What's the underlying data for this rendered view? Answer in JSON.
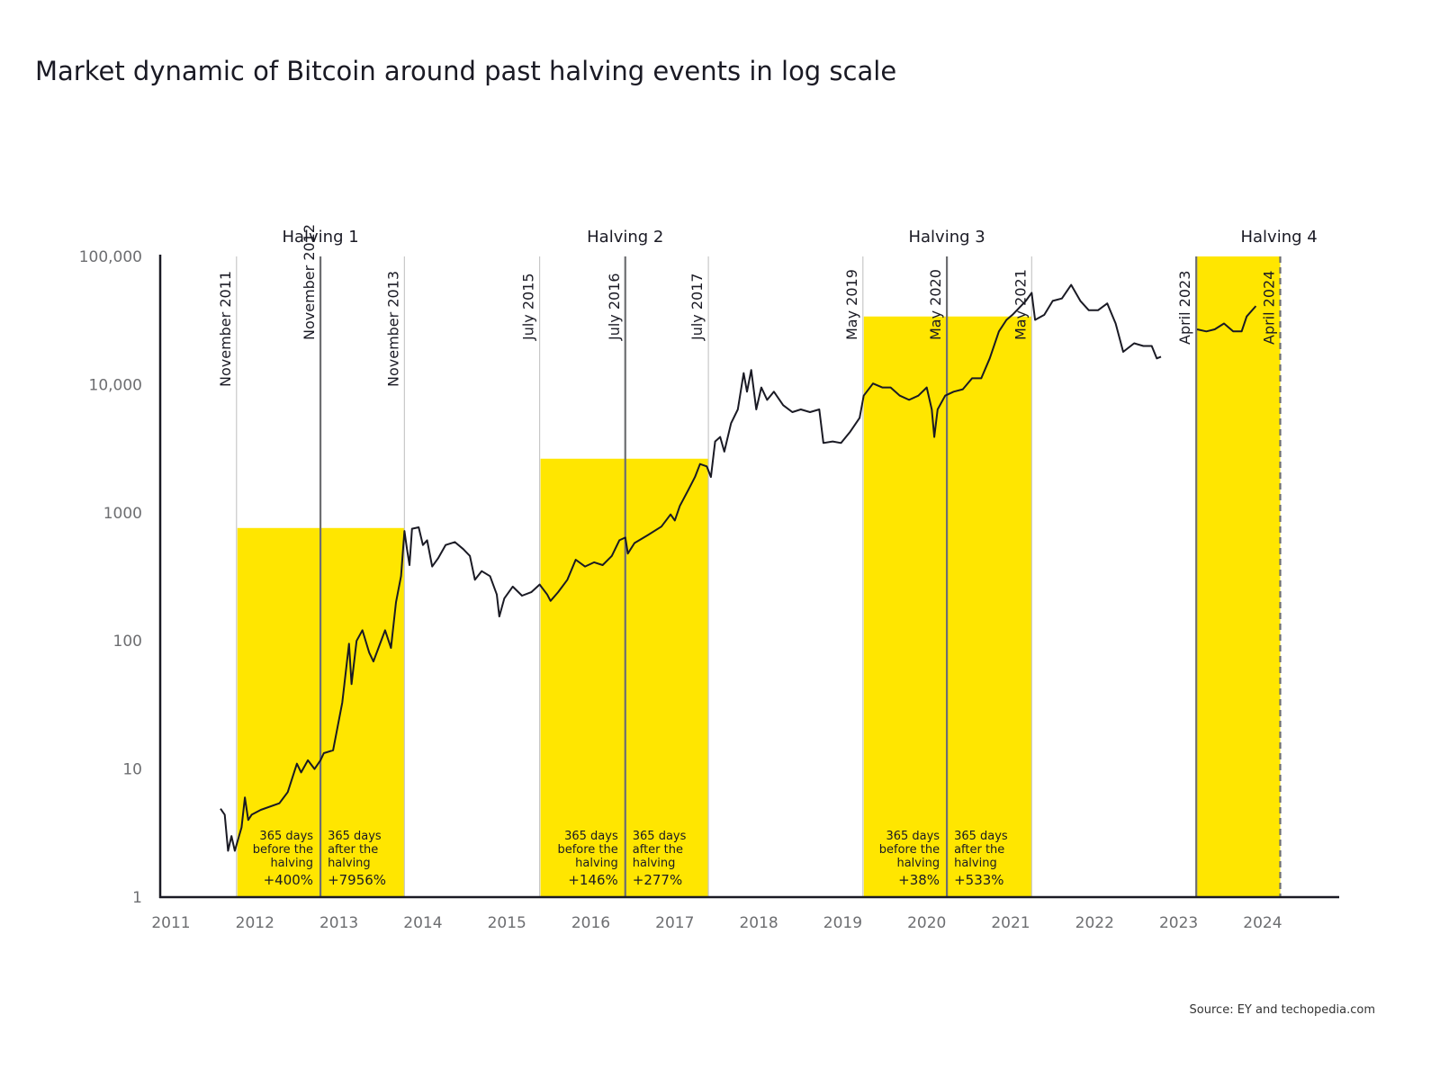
{
  "title": "Market dynamic of Bitcoin around past halving events in log scale",
  "source": "Source: EY and techopedia.com",
  "colors": {
    "highlight": "#FFE600",
    "line": "#1a1a24",
    "halving_line": "#6d6e71",
    "window_line": "#c8c8c8",
    "axis": "#1a1a24"
  },
  "chart_data": {
    "type": "line",
    "title": "Market dynamic of Bitcoin around past halving events in log scale",
    "xlabel": "",
    "ylabel": "",
    "y_scale": "log",
    "ylim": [
      1,
      100000
    ],
    "xlim": [
      2010.87,
      2024.9
    ],
    "grid": false,
    "x_ticks": [
      "2011",
      "2012",
      "2013",
      "2014",
      "2015",
      "2016",
      "2017",
      "2018",
      "2019",
      "2020",
      "2021",
      "2022",
      "2023",
      "2024"
    ],
    "y_ticks": [
      {
        "value": 1,
        "label": "1"
      },
      {
        "value": 10,
        "label": "10"
      },
      {
        "value": 100,
        "label": "100"
      },
      {
        "value": 1000,
        "label": "1000"
      },
      {
        "value": 10000,
        "label": "10,000"
      },
      {
        "value": 100000,
        "label": "100,000"
      }
    ],
    "vertical_markers": [
      {
        "label": "November 2011",
        "x": 2011.78,
        "kind": "window"
      },
      {
        "label": "November 2012",
        "x": 2012.78,
        "kind": "halving"
      },
      {
        "label": "November 2013",
        "x": 2013.78,
        "kind": "window"
      },
      {
        "label": "July 2015",
        "x": 2015.39,
        "kind": "window"
      },
      {
        "label": "July 2016",
        "x": 2016.41,
        "kind": "halving"
      },
      {
        "label": "July 2017",
        "x": 2017.4,
        "kind": "window"
      },
      {
        "label": "May 2019",
        "x": 2019.24,
        "kind": "window"
      },
      {
        "label": "May 2020",
        "x": 2020.24,
        "kind": "halving"
      },
      {
        "label": "May 2021",
        "x": 2021.25,
        "kind": "window"
      },
      {
        "label": "April 2023",
        "x": 2023.21,
        "kind": "halving"
      },
      {
        "label": "April 2024",
        "x": 2024.21,
        "kind": "halving-dashed"
      }
    ],
    "halvings": [
      {
        "label": "Halving 1",
        "start": 2011.78,
        "mid": 2012.78,
        "end": 2013.78,
        "top": 760,
        "before_text": [
          "365 days",
          "before the",
          "halving"
        ],
        "before_pct": "+400%",
        "after_text": [
          "365 days",
          "after the",
          "halving"
        ],
        "after_pct": "+7956%"
      },
      {
        "label": "Halving 2",
        "start": 2015.39,
        "mid": 2016.41,
        "end": 2017.4,
        "top": 2640,
        "before_text": [
          "365 days",
          "before the",
          "halving"
        ],
        "before_pct": "+146%",
        "after_text": [
          "365 days",
          "after the",
          "halving"
        ],
        "after_pct": "+277%"
      },
      {
        "label": "Halving 3",
        "start": 2019.24,
        "mid": 2020.24,
        "end": 2021.25,
        "top": 34000,
        "before_text": [
          "365 days",
          "before the",
          "halving"
        ],
        "before_pct": "+38%",
        "after_text": [
          "365 days",
          "after the",
          "halving"
        ],
        "after_pct": "+533%"
      },
      {
        "label": "Halving 4",
        "start": 2023.21,
        "mid": 2024.21,
        "end": 2024.21,
        "top": 100000
      }
    ],
    "series": [
      {
        "segments": [
          [
            [
              2011.59,
              4.9
            ],
            [
              2011.64,
              4.4
            ],
            [
              2011.68,
              2.3
            ],
            [
              2011.72,
              3
            ],
            [
              2011.76,
              2.3
            ],
            [
              2011.84,
              3.5
            ],
            [
              2011.88,
              6
            ],
            [
              2011.92,
              4
            ],
            [
              2011.96,
              4.4
            ],
            [
              2012.07,
              4.8
            ],
            [
              2012.29,
              5.4
            ],
            [
              2012.39,
              6.6
            ],
            [
              2012.5,
              11
            ],
            [
              2012.55,
              9.4
            ],
            [
              2012.63,
              11.7
            ],
            [
              2012.71,
              10
            ],
            [
              2012.78,
              11.7
            ],
            [
              2012.82,
              13.3
            ],
            [
              2012.93,
              14
            ],
            [
              2013.04,
              33
            ],
            [
              2013.12,
              95
            ],
            [
              2013.15,
              46
            ],
            [
              2013.21,
              100
            ],
            [
              2013.28,
              121
            ],
            [
              2013.36,
              81
            ],
            [
              2013.41,
              69
            ],
            [
              2013.47,
              88
            ],
            [
              2013.55,
              121
            ],
            [
              2013.62,
              88
            ],
            [
              2013.68,
              200
            ],
            [
              2013.74,
              320
            ],
            [
              2013.78,
              720
            ],
            [
              2013.81,
              520
            ],
            [
              2013.84,
              390
            ],
            [
              2013.87,
              750
            ],
            [
              2013.95,
              770
            ],
            [
              2014.0,
              560
            ],
            [
              2014.05,
              610
            ],
            [
              2014.11,
              380
            ],
            [
              2014.18,
              440
            ],
            [
              2014.27,
              560
            ],
            [
              2014.38,
              590
            ],
            [
              2014.48,
              520
            ],
            [
              2014.56,
              460
            ],
            [
              2014.62,
              300
            ],
            [
              2014.7,
              350
            ],
            [
              2014.8,
              320
            ],
            [
              2014.88,
              230
            ],
            [
              2014.91,
              155
            ],
            [
              2014.97,
              215
            ],
            [
              2015.07,
              265
            ],
            [
              2015.18,
              225
            ],
            [
              2015.29,
              240
            ],
            [
              2015.39,
              275
            ],
            [
              2015.48,
              230
            ],
            [
              2015.52,
              205
            ],
            [
              2015.61,
              240
            ],
            [
              2015.72,
              300
            ],
            [
              2015.82,
              430
            ],
            [
              2015.93,
              380
            ],
            [
              2016.04,
              410
            ],
            [
              2016.14,
              390
            ],
            [
              2016.25,
              460
            ],
            [
              2016.34,
              610
            ],
            [
              2016.41,
              640
            ],
            [
              2016.44,
              480
            ],
            [
              2016.52,
              580
            ],
            [
              2016.68,
              670
            ],
            [
              2016.84,
              780
            ],
            [
              2016.95,
              970
            ],
            [
              2017.0,
              870
            ],
            [
              2017.06,
              1130
            ],
            [
              2017.16,
              1500
            ],
            [
              2017.24,
              1900
            ],
            [
              2017.3,
              2400
            ],
            [
              2017.38,
              2300
            ],
            [
              2017.43,
              1900
            ],
            [
              2017.48,
              3600
            ],
            [
              2017.54,
              3900
            ],
            [
              2017.59,
              3000
            ],
            [
              2017.67,
              5000
            ],
            [
              2017.75,
              6400
            ],
            [
              2017.82,
              12300
            ],
            [
              2017.86,
              8800
            ],
            [
              2017.91,
              13000
            ],
            [
              2017.97,
              6400
            ],
            [
              2018.03,
              9500
            ],
            [
              2018.1,
              7600
            ],
            [
              2018.18,
              8800
            ],
            [
              2018.29,
              6900
            ],
            [
              2018.4,
              6100
            ],
            [
              2018.5,
              6400
            ],
            [
              2018.61,
              6100
            ],
            [
              2018.72,
              6400
            ],
            [
              2018.77,
              3500
            ],
            [
              2018.88,
              3600
            ],
            [
              2018.98,
              3500
            ],
            [
              2019.09,
              4300
            ],
            [
              2019.2,
              5500
            ],
            [
              2019.25,
              8200
            ],
            [
              2019.36,
              10200
            ],
            [
              2019.47,
              9500
            ],
            [
              2019.57,
              9500
            ],
            [
              2019.68,
              8200
            ],
            [
              2019.79,
              7600
            ],
            [
              2019.9,
              8200
            ],
            [
              2020.0,
              9500
            ],
            [
              2020.06,
              6400
            ],
            [
              2020.09,
              3900
            ],
            [
              2020.13,
              6400
            ],
            [
              2020.22,
              8200
            ],
            [
              2020.32,
              8800
            ],
            [
              2020.43,
              9200
            ],
            [
              2020.54,
              11200
            ],
            [
              2020.65,
              11200
            ],
            [
              2020.75,
              16000
            ],
            [
              2020.86,
              26000
            ],
            [
              2020.95,
              32000
            ],
            [
              2021.02,
              35000
            ],
            [
              2021.18,
              45000
            ],
            [
              2021.25,
              52000
            ],
            [
              2021.29,
              32000
            ],
            [
              2021.4,
              35000
            ],
            [
              2021.5,
              45000
            ],
            [
              2021.61,
              47000
            ],
            [
              2021.72,
              60000
            ],
            [
              2021.83,
              45000
            ],
            [
              2021.93,
              38000
            ],
            [
              2022.04,
              38000
            ],
            [
              2022.15,
              43000
            ],
            [
              2022.25,
              30000
            ],
            [
              2022.34,
              18000
            ],
            [
              2022.47,
              21000
            ],
            [
              2022.58,
              20000
            ],
            [
              2022.68,
              20000
            ],
            [
              2022.74,
              16000
            ],
            [
              2022.79,
              16500
            ]
          ],
          [
            [
              2023.22,
              27000
            ],
            [
              2023.33,
              26000
            ],
            [
              2023.43,
              27000
            ],
            [
              2023.54,
              30000
            ],
            [
              2023.65,
              26000
            ],
            [
              2023.75,
              26000
            ],
            [
              2023.81,
              34000
            ],
            [
              2023.92,
              41000
            ]
          ]
        ]
      }
    ]
  }
}
